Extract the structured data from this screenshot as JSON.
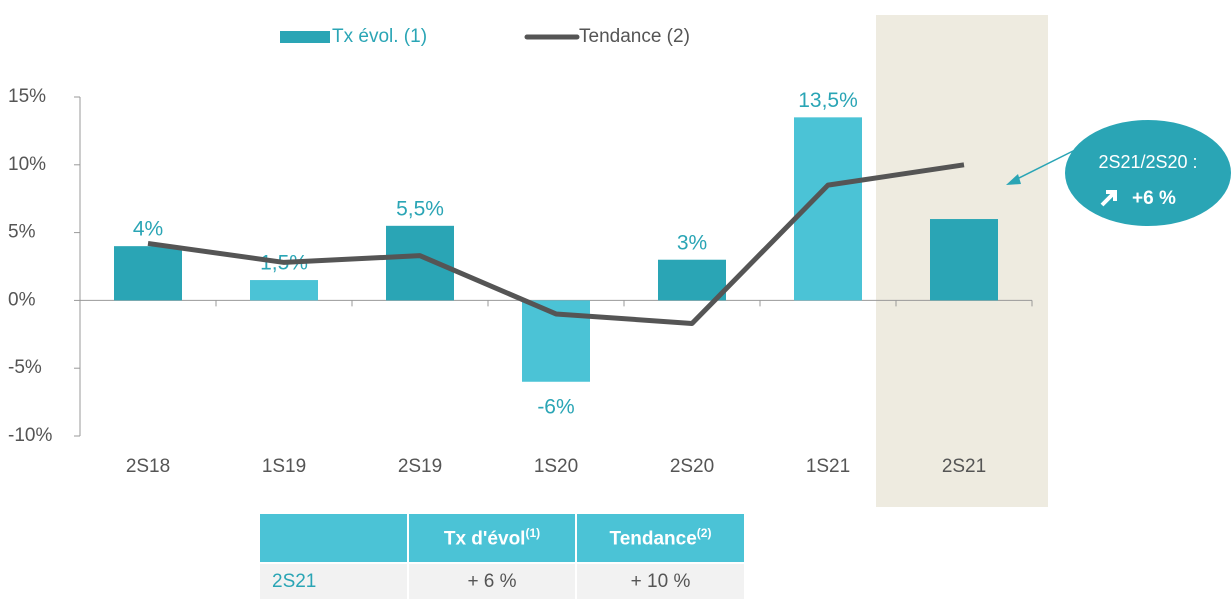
{
  "chart_data": {
    "type": "bar",
    "categories": [
      "2S18",
      "1S19",
      "2S19",
      "1S20",
      "2S20",
      "1S21",
      "2S21"
    ],
    "series": [
      {
        "name": "Tx évol. (1)",
        "type": "bar",
        "color": "#2aa5b5",
        "colors": [
          "#2aa5b5",
          "#4bc3d6",
          "#2aa5b5",
          "#4bc3d6",
          "#2aa5b5",
          "#4bc3d6",
          "#2aa5b5"
        ],
        "values": [
          4,
          1.5,
          5.5,
          -6,
          3,
          13.5,
          6
        ],
        "value_labels": [
          "4%",
          "1,5%",
          "5,5%",
          "-6%",
          "3%",
          "13,5%",
          null
        ]
      },
      {
        "name": "Tendance (2)",
        "type": "line",
        "color": "#555555",
        "values": [
          4.2,
          2.8,
          3.3,
          -1,
          -1.7,
          8.5,
          10
        ]
      }
    ],
    "ylim": [
      -10,
      15
    ],
    "yticks": [
      {
        "value": -10,
        "label": "-10%"
      },
      {
        "value": -5,
        "label": "-5%"
      },
      {
        "value": 0,
        "label": "0%"
      },
      {
        "value": 5,
        "label": "5%"
      },
      {
        "value": 10,
        "label": "10%"
      },
      {
        "value": 15,
        "label": "15%"
      }
    ],
    "legend": "top",
    "annotation": {
      "line1": "2S21/2S20 :",
      "line2": "+6 %"
    }
  },
  "table": {
    "header": [
      "Tx d'évol",
      "(1)",
      "Tendance",
      "(2)"
    ],
    "rows": [
      [
        "2S21",
        "+ 6 %",
        "+ 10 %"
      ]
    ]
  }
}
